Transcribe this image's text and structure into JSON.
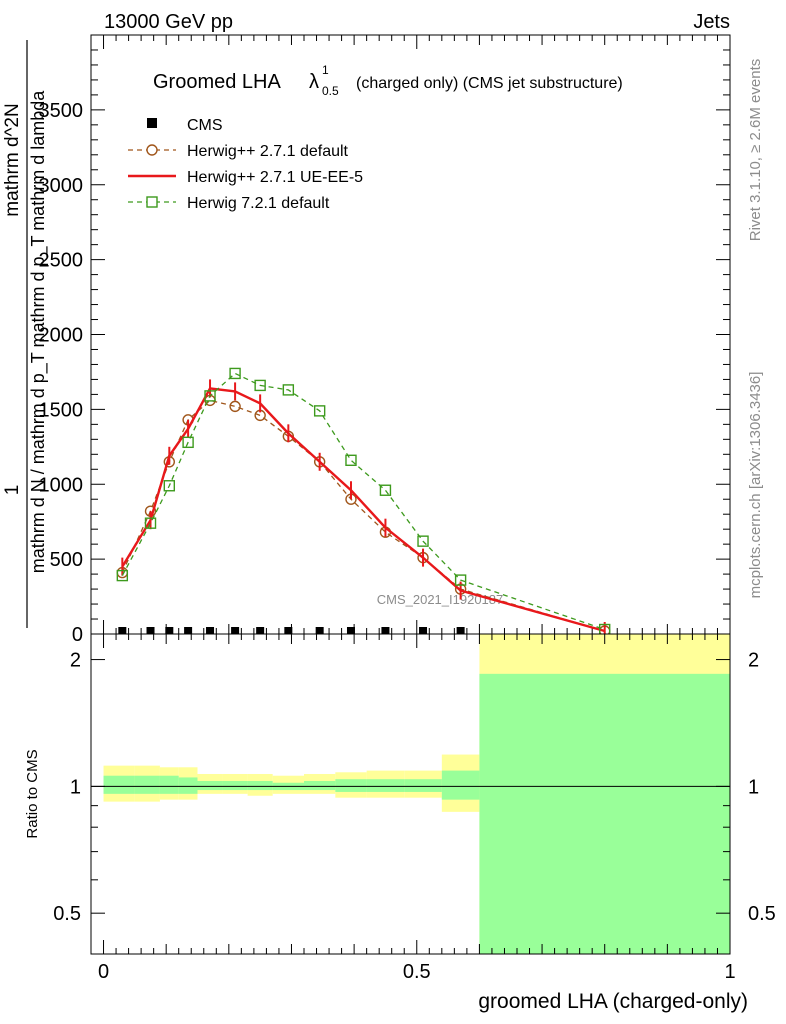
{
  "header": {
    "left": "13000 GeV pp",
    "right": "Jets"
  },
  "title": {
    "main": "Groomed LHA",
    "lambda": "λ",
    "sup": "1",
    "sub": "0.5",
    "suffix": "(charged only) (CMS jet substructure)"
  },
  "side": {
    "rivet": "Rivet 3.1.10, ≥ 2.6M events",
    "mcplots": "mcplots.cern.ch [arXiv:1306.3436]"
  },
  "watermark": "CMS_2021_I1920187",
  "ylabel_main": {
    "numer_one": "1",
    "numer_dn": "mathrm d^2N",
    "denom": "mathrm d N / mathrm d p_T mathrm d p_T mathrm d lambda"
  },
  "ylabel_ratio": "Ratio to CMS",
  "xlabel": "groomed LHA (charged-only)",
  "legend": [
    {
      "name": "CMS",
      "marker": "square-filled",
      "color": "#000000"
    },
    {
      "name": "Herwig++ 2.7.1 default",
      "marker": "circle-open",
      "color": "#a0561b"
    },
    {
      "name": "Herwig++ 2.7.1 UE-EE-5",
      "marker": "line",
      "color": "#e8181b"
    },
    {
      "name": "Herwig 7.2.1 default",
      "marker": "square-open",
      "color": "#3d9a1d"
    }
  ],
  "chart_data": {
    "type": "line",
    "x_ticks": [
      "0",
      "0.5",
      "1"
    ],
    "xlim": [
      -0.02,
      1.0
    ],
    "main": {
      "ylim": [
        0,
        4000
      ],
      "y_ticks": [
        "0",
        "500",
        "1000",
        "1500",
        "2000",
        "2500",
        "3000",
        "3500"
      ],
      "x": [
        0.03,
        0.075,
        0.105,
        0.135,
        0.17,
        0.21,
        0.25,
        0.295,
        0.345,
        0.395,
        0.45,
        0.51,
        0.57,
        0.8
      ],
      "series": [
        {
          "name": "CMS",
          "values": [
            0,
            0,
            0,
            0,
            0,
            0,
            0,
            0,
            0,
            0,
            0,
            0,
            0,
            0
          ]
        },
        {
          "name": "Herwig++ 2.7.1 default",
          "values": [
            410,
            820,
            1150,
            1430,
            1560,
            1520,
            1460,
            1320,
            1150,
            900,
            680,
            510,
            300,
            20
          ]
        },
        {
          "name": "Herwig++ 2.7.1 UE-EE-5",
          "values": [
            450,
            760,
            1190,
            1370,
            1640,
            1620,
            1540,
            1340,
            1150,
            960,
            710,
            510,
            290,
            20
          ]
        },
        {
          "name": "Herwig 7.2.1 default",
          "values": [
            390,
            740,
            990,
            1280,
            1590,
            1740,
            1660,
            1630,
            1490,
            1160,
            960,
            620,
            360,
            30
          ]
        }
      ]
    },
    "ratio": {
      "scale": "log",
      "ylim": [
        0.4,
        2.3
      ],
      "y_ticks": [
        "0.5",
        "1",
        "2"
      ],
      "bin_edges": [
        0.0,
        0.05,
        0.09,
        0.12,
        0.15,
        0.19,
        0.23,
        0.27,
        0.32,
        0.37,
        0.42,
        0.48,
        0.54,
        0.6,
        1.0
      ],
      "yellow_band": [
        [
          0.92,
          1.12
        ],
        [
          0.92,
          1.12
        ],
        [
          0.93,
          1.11
        ],
        [
          0.93,
          1.11
        ],
        [
          0.96,
          1.07
        ],
        [
          0.96,
          1.07
        ],
        [
          0.95,
          1.07
        ],
        [
          0.96,
          1.06
        ],
        [
          0.96,
          1.07
        ],
        [
          0.94,
          1.08
        ],
        [
          0.94,
          1.09
        ],
        [
          0.94,
          1.09
        ],
        [
          0.87,
          1.19
        ],
        [
          0.4,
          2.3
        ]
      ],
      "green_band": [
        [
          0.96,
          1.06
        ],
        [
          0.96,
          1.06
        ],
        [
          0.96,
          1.06
        ],
        [
          0.96,
          1.05
        ],
        [
          0.98,
          1.03
        ],
        [
          0.98,
          1.03
        ],
        [
          0.98,
          1.03
        ],
        [
          0.98,
          1.02
        ],
        [
          0.98,
          1.03
        ],
        [
          0.97,
          1.04
        ],
        [
          0.97,
          1.04
        ],
        [
          0.97,
          1.04
        ],
        [
          0.93,
          1.09
        ],
        [
          0.4,
          1.85
        ]
      ]
    }
  }
}
